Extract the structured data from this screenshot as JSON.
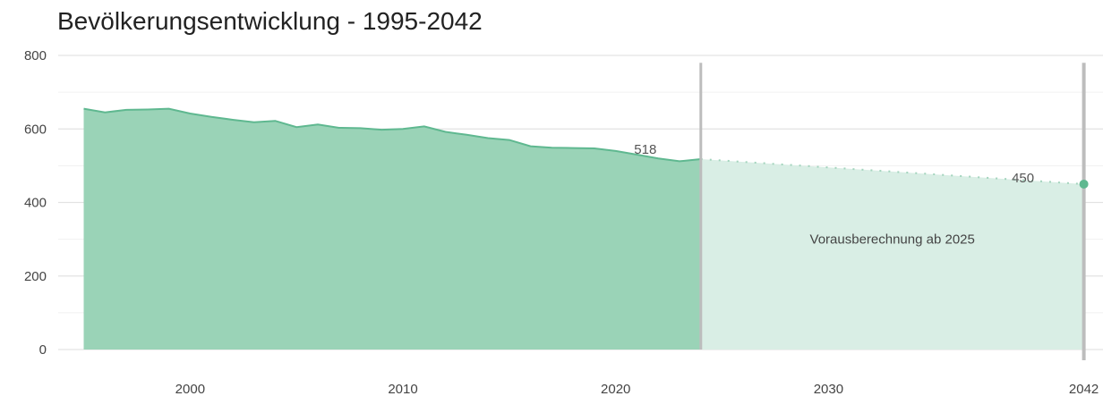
{
  "chart_data": {
    "type": "area",
    "title": "Bevölkerungsentwicklung - 1995-2042",
    "xlabel": "",
    "ylabel": "",
    "xlim": [
      1993.8,
      2042.9
    ],
    "ylim": [
      0,
      800
    ],
    "x_ticks": [
      2000,
      2010,
      2020,
      2030,
      2042
    ],
    "x_tick_labels": [
      "2000",
      "2010",
      "2020",
      "2030",
      "2042"
    ],
    "y_ticks": [
      0,
      200,
      400,
      600,
      800
    ],
    "y_tick_labels": [
      "0",
      "200",
      "400",
      "600",
      "800"
    ],
    "grid": true,
    "colors": {
      "historical_fill": "#9ad3b7",
      "historical_line": "#5fb890",
      "projection_fill": "#d9eee5",
      "projection_line": "#a3d4bd",
      "marker": "#5fb890",
      "grid": "#e3e3e3",
      "separator": "#bdbdbd"
    },
    "series": [
      {
        "x": [
          1995,
          1996,
          1997,
          1998,
          1999,
          2000,
          2001,
          2002,
          2003,
          2004,
          2005,
          2006,
          2007,
          2008,
          2009,
          2010,
          2011,
          2012,
          2013,
          2014,
          2015,
          2016,
          2017,
          2018,
          2019,
          2020,
          2021,
          2022,
          2023,
          2024
        ],
        "values": [
          655,
          645,
          652,
          653,
          655,
          642,
          633,
          625,
          618,
          622,
          605,
          612,
          603,
          602,
          598,
          600,
          607,
          592,
          584,
          575,
          570,
          553,
          549,
          548,
          547,
          540,
          530,
          520,
          512,
          518
        ]
      },
      {
        "x": [
          2024,
          2042
        ],
        "values": [
          518,
          450
        ]
      }
    ],
    "annotations": [
      {
        "x": 2024,
        "y": 518,
        "text": "518"
      },
      {
        "x": 2042,
        "y": 450,
        "text": "450"
      },
      {
        "text": "Vorausberechnung ab 2025"
      }
    ]
  }
}
